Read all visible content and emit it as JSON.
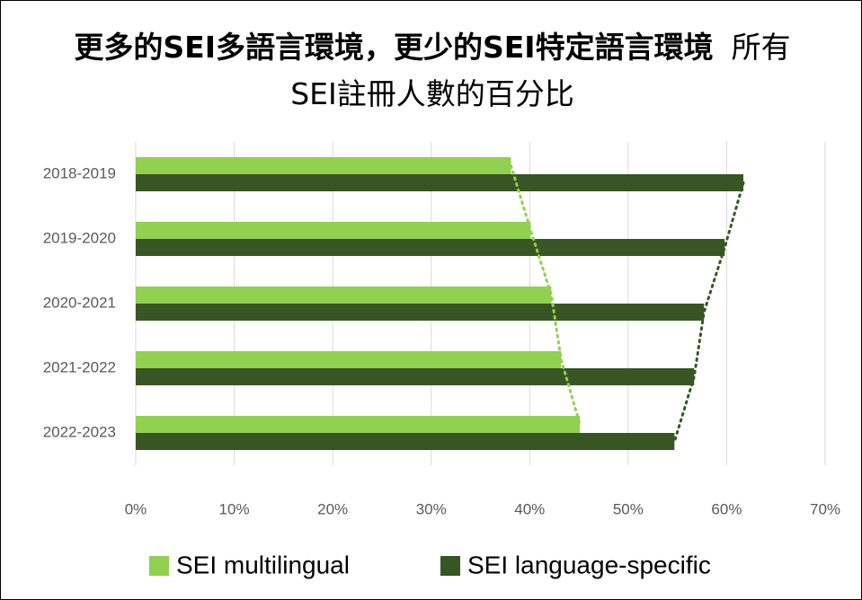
{
  "chart_data": {
    "type": "bar",
    "orientation": "horizontal",
    "title": "更多的SEI多語言環境，更少的SEI特定語言環境",
    "subtitle": "所有SEI註冊人數的百分比",
    "categories": [
      "2018-2019",
      "2019-2020",
      "2020-2021",
      "2021-2022",
      "2022-2023"
    ],
    "series": [
      {
        "name": "SEI multilingual",
        "color": "#92d050",
        "values": [
          38.1,
          40.1,
          42.2,
          43.2,
          45.1
        ]
      },
      {
        "name": "SEI language-specific",
        "color": "#375623",
        "values": [
          61.7,
          59.8,
          57.7,
          56.7,
          54.7
        ]
      }
    ],
    "xlim": [
      0,
      70
    ],
    "xticks": [
      {
        "value": 0,
        "label": "0%"
      },
      {
        "value": 10,
        "label": "10%"
      },
      {
        "value": 20,
        "label": "20%"
      },
      {
        "value": 30,
        "label": "30%"
      },
      {
        "value": 40,
        "label": "40%"
      },
      {
        "value": 50,
        "label": "50%"
      },
      {
        "value": 60,
        "label": "60%"
      },
      {
        "value": 70,
        "label": "70%"
      }
    ],
    "grid": true,
    "trendlines": true,
    "legend": "bottom"
  }
}
